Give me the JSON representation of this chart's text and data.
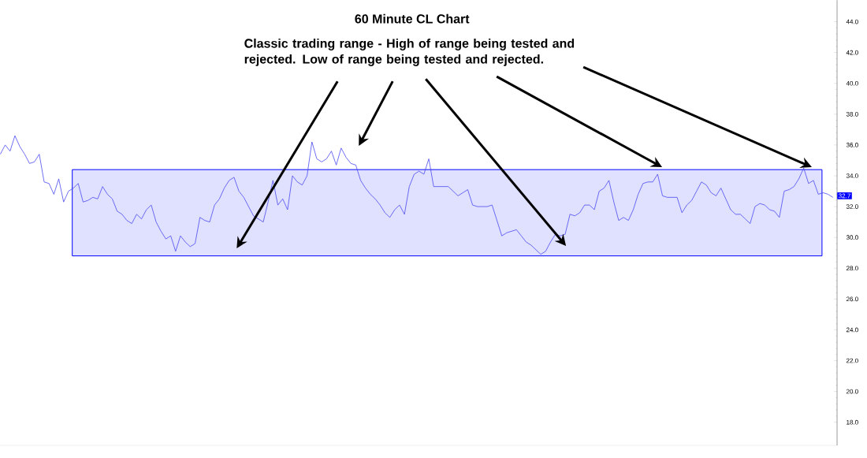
{
  "chart_data": {
    "type": "line",
    "title": "60 Minute CL Chart",
    "annotations": [
      "Classic trading range - High of range being tested and rejected.  Low of range being tested and rejected.",
      {
        "text": "32.7",
        "y": 32.7
      }
    ],
    "categories": [
      null,
      null,
      null,
      null,
      null,
      null,
      null,
      null,
      null,
      null,
      null,
      null,
      null,
      null,
      null,
      null,
      null,
      null,
      null,
      null,
      null,
      null,
      null,
      null,
      null,
      null,
      null,
      null,
      null,
      null,
      null,
      null,
      null,
      null,
      null,
      null,
      null,
      null,
      null,
      null,
      null,
      null,
      null,
      null,
      null,
      null,
      null,
      null,
      null,
      null,
      null,
      null,
      null,
      null,
      null,
      null,
      null,
      null,
      null,
      null,
      null,
      null,
      null,
      null,
      null,
      null,
      null,
      null,
      null,
      null,
      null,
      null,
      null,
      null,
      null,
      null,
      null,
      null,
      null,
      null,
      null,
      null,
      null,
      null,
      null,
      null,
      null,
      null,
      null,
      null,
      null,
      null,
      null,
      null,
      null,
      null,
      null,
      null,
      null,
      null,
      null,
      null,
      null,
      null,
      null,
      null,
      null,
      null,
      null,
      null,
      null,
      null,
      null,
      null,
      null,
      null,
      null,
      null,
      null,
      null,
      null,
      null,
      null,
      null,
      null,
      null,
      null,
      null,
      null,
      null,
      null,
      null,
      null,
      null,
      null,
      null,
      null,
      null,
      null,
      null,
      null,
      null,
      null,
      null,
      null,
      null,
      null,
      null,
      null,
      null,
      null,
      null,
      null,
      null,
      null,
      null,
      null,
      null,
      null,
      null,
      null,
      null,
      null,
      null,
      null,
      null,
      null,
      null,
      null,
      null,
      null,
      null
    ],
    "values": [
      35.4,
      36.0,
      35.6,
      36.6,
      35.9,
      35.4,
      34.8,
      34.9,
      35.4,
      33.6,
      33.5,
      32.8,
      33.8,
      32.3,
      33.0,
      33.2,
      33.5,
      32.3,
      32.4,
      32.6,
      32.5,
      33.3,
      32.8,
      32.5,
      31.7,
      31.5,
      31.1,
      30.9,
      31.5,
      31.2,
      31.8,
      32.1,
      31.0,
      30.4,
      29.9,
      30.1,
      29.1,
      30.1,
      29.7,
      29.4,
      29.6,
      31.3,
      31.1,
      31.0,
      32.1,
      32.5,
      33.2,
      33.7,
      33.9,
      33.0,
      32.6,
      32.0,
      31.4,
      31.2,
      31.0,
      32.3,
      33.7,
      32.1,
      32.5,
      31.8,
      34.0,
      33.6,
      33.4,
      34.0,
      36.2,
      35.1,
      34.9,
      35.1,
      35.6,
      34.7,
      35.8,
      35.2,
      34.8,
      34.7,
      33.7,
      33.2,
      32.8,
      32.5,
      32.1,
      31.6,
      31.3,
      31.8,
      32.1,
      31.5,
      33.3,
      34.1,
      34.3,
      34.1,
      35.1,
      33.3,
      33.3,
      33.3,
      33.3,
      33.0,
      32.7,
      32.9,
      33.1,
      32.1,
      32.0,
      32.0,
      32.0,
      32.1,
      31.1,
      30.1,
      30.3,
      30.4,
      30.5,
      30.1,
      29.7,
      29.5,
      29.2,
      28.9,
      29.1,
      29.7,
      30.2,
      30.1,
      30.2,
      31.5,
      31.4,
      31.6,
      32.1,
      32.1,
      31.8,
      33.0,
      33.2,
      33.7,
      32.3,
      31.1,
      31.3,
      31.1,
      31.8,
      32.8,
      33.5,
      33.6,
      33.6,
      34.1,
      32.7,
      32.6,
      32.6,
      32.6,
      31.6,
      32.1,
      32.4,
      33.0,
      33.6,
      33.4,
      32.9,
      32.7,
      33.2,
      32.5,
      31.8,
      31.5,
      31.5,
      31.2,
      30.9,
      32.0,
      32.2,
      32.1,
      31.8,
      31.7,
      31.3,
      33.0,
      33.1,
      33.3,
      33.8,
      34.5,
      33.5,
      33.7,
      32.8,
      32.9,
      32.8,
      32.6
    ],
    "color": "#4a4af0",
    "ylim": [
      16.5,
      45.4
    ],
    "yticks": [
      {
        "value": 18,
        "label": "18.0"
      },
      {
        "value": 20,
        "label": "20.0"
      },
      {
        "value": 22,
        "label": "22.0"
      },
      {
        "value": 24,
        "label": "24.0"
      },
      {
        "value": 26,
        "label": "26.0"
      },
      {
        "value": 28,
        "label": "28.0"
      },
      {
        "value": 30,
        "label": "30.0"
      },
      {
        "value": 32,
        "label": "32.0"
      },
      {
        "value": 34,
        "label": "34.0"
      },
      {
        "value": 36,
        "label": "36.0"
      },
      {
        "value": 38,
        "label": "38.0"
      },
      {
        "value": 40,
        "label": "40.0"
      },
      {
        "value": 42,
        "label": "42.0"
      },
      {
        "value": 44,
        "label": "44.0"
      }
    ],
    "bands": [
      {
        "axis": "y",
        "from": 28.8,
        "to": 34.4,
        "color": "#0000ff"
      }
    ],
    "tick_labels": "y",
    "grid": false
  }
}
